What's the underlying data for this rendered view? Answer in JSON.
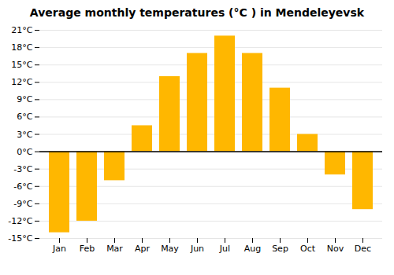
{
  "chart_data": {
    "type": "bar",
    "title": "Average monthly temperatures (°C ) in Mendeleyevsk",
    "categories": [
      "Jan",
      "Feb",
      "Mar",
      "Apr",
      "May",
      "Jun",
      "Jul",
      "Aug",
      "Sep",
      "Oct",
      "Nov",
      "Dec"
    ],
    "values": [
      -14,
      -12,
      -5,
      4.5,
      13,
      17,
      20,
      17,
      11,
      3,
      -4,
      -10
    ],
    "color": "#FFB700",
    "ylim": [
      -15,
      21
    ],
    "yticks": [
      {
        "value": -15,
        "label": "-15°C"
      },
      {
        "value": -12,
        "label": "-12°C"
      },
      {
        "value": -9,
        "label": "-9°C"
      },
      {
        "value": -6,
        "label": "-6°C"
      },
      {
        "value": -3,
        "label": "-3°C"
      },
      {
        "value": 0,
        "label": "0°C"
      },
      {
        "value": 3,
        "label": "3°C"
      },
      {
        "value": 6,
        "label": "6°C"
      },
      {
        "value": 9,
        "label": "9°C"
      },
      {
        "value": 12,
        "label": "12°C"
      },
      {
        "value": 15,
        "label": "15°C"
      },
      {
        "value": 18,
        "label": "18°C"
      },
      {
        "value": 21,
        "label": "21°C"
      }
    ],
    "grid": true
  }
}
